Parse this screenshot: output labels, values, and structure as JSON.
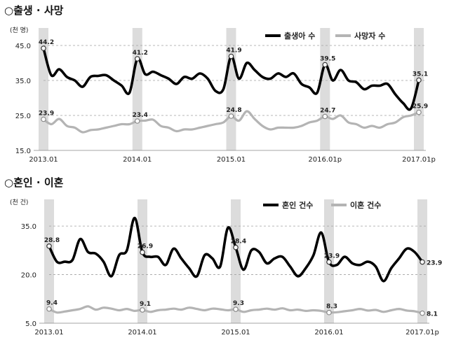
{
  "sections": [
    {
      "title": "○출생 · 사망"
    },
    {
      "title": "○혼인 · 이혼"
    }
  ],
  "chart_data": [
    {
      "type": "line",
      "unit_label": "(천 명)",
      "x_ticks": [
        "2013.01",
        "2014.01",
        "2015.01",
        "2016.01p",
        "2017.01p"
      ],
      "y_ticks": [
        15.0,
        25.0,
        35.0,
        45.0
      ],
      "ylim": [
        15,
        45
      ],
      "highlight_months": [
        0,
        12,
        24,
        36,
        48
      ],
      "series": [
        {
          "name": "출생아 수",
          "color": "#000000",
          "values": [
            44.2,
            36.5,
            38.2,
            36.0,
            35.0,
            33.2,
            36.0,
            36.3,
            36.5,
            35.0,
            33.5,
            31.5,
            41.2,
            36.8,
            37.5,
            36.5,
            35.5,
            34.0,
            36.0,
            35.5,
            37.0,
            35.5,
            32.0,
            32.5,
            41.9,
            35.5,
            40.0,
            38.0,
            36.0,
            35.5,
            37.0,
            36.0,
            37.0,
            34.0,
            33.0,
            31.5,
            39.5,
            35.0,
            38.0,
            35.0,
            34.5,
            32.5,
            33.5,
            33.5,
            34.0,
            31.0,
            28.5,
            27.0,
            35.1
          ],
          "labels": [
            {
              "i": 0,
              "text": "44.2"
            },
            {
              "i": 12,
              "text": "41.2"
            },
            {
              "i": 24,
              "text": "41.9"
            },
            {
              "i": 36,
              "text": "39.5"
            },
            {
              "i": 48,
              "text": "35.1"
            }
          ]
        },
        {
          "name": "사망자 수",
          "color": "#b4b4b4",
          "values": [
            23.9,
            22.5,
            24.0,
            22.0,
            21.5,
            20.2,
            20.8,
            21.0,
            21.5,
            22.0,
            22.5,
            22.5,
            23.4,
            23.5,
            23.8,
            22.0,
            21.5,
            20.5,
            21.0,
            21.0,
            21.5,
            22.0,
            22.5,
            23.0,
            24.8,
            23.5,
            26.2,
            24.0,
            22.0,
            21.0,
            21.5,
            21.5,
            21.5,
            22.0,
            23.0,
            23.5,
            24.7,
            24.0,
            25.0,
            23.0,
            22.5,
            21.5,
            22.0,
            21.5,
            22.5,
            23.0,
            24.5,
            25.0,
            25.9
          ],
          "labels": [
            {
              "i": 0,
              "text": "23.9"
            },
            {
              "i": 12,
              "text": "23.4"
            },
            {
              "i": 24,
              "text": "24.8"
            },
            {
              "i": 36,
              "text": "24.7"
            },
            {
              "i": 48,
              "text": "25.9"
            }
          ]
        }
      ]
    },
    {
      "type": "line",
      "unit_label": "(천 건)",
      "x_ticks": [
        "2013.01",
        "2014.01",
        "2015.01",
        "2016.01",
        "2017.01p"
      ],
      "y_ticks": [
        5.0,
        20.0,
        35.0
      ],
      "ylim": [
        5,
        40
      ],
      "highlight_months": [
        0,
        12,
        24,
        36,
        48
      ],
      "series": [
        {
          "name": "혼인 건수",
          "color": "#000000",
          "values": [
            28.8,
            24.0,
            24.0,
            24.5,
            31.0,
            27.0,
            26.5,
            24.0,
            19.5,
            26.0,
            27.5,
            37.5,
            26.9,
            25.5,
            25.5,
            23.0,
            28.0,
            25.0,
            22.0,
            19.5,
            26.0,
            25.0,
            22.5,
            34.5,
            28.4,
            21.5,
            27.5,
            27.0,
            23.5,
            25.0,
            25.5,
            22.5,
            19.5,
            22.0,
            26.0,
            33.0,
            23.9,
            23.0,
            25.5,
            23.5,
            23.0,
            24.0,
            22.5,
            18.0,
            22.0,
            25.0,
            28.0,
            27.0,
            23.9
          ],
          "labels": [
            {
              "i": 0,
              "text": "28.8"
            },
            {
              "i": 12,
              "text": "26.9"
            },
            {
              "i": 24,
              "text": "28.4"
            },
            {
              "i": 36,
              "text": "23.9"
            },
            {
              "i": 48,
              "text": "23.9"
            }
          ]
        },
        {
          "name": "이혼 건수",
          "color": "#b4b4b4",
          "values": [
            9.4,
            8.3,
            8.6,
            9.0,
            9.4,
            10.2,
            9.2,
            9.8,
            9.5,
            9.0,
            9.4,
            8.8,
            9.1,
            8.5,
            9.0,
            9.2,
            9.5,
            9.2,
            9.8,
            9.4,
            9.0,
            9.5,
            9.3,
            9.0,
            9.3,
            8.5,
            9.0,
            9.2,
            9.5,
            9.2,
            9.6,
            9.0,
            9.2,
            8.8,
            9.0,
            8.8,
            8.3,
            8.4,
            8.7,
            9.0,
            9.4,
            8.9,
            9.1,
            8.5,
            9.0,
            9.4,
            8.9,
            8.7,
            8.1
          ],
          "labels": [
            {
              "i": 0,
              "text": "9.4"
            },
            {
              "i": 12,
              "text": "9.1"
            },
            {
              "i": 24,
              "text": "9.3"
            },
            {
              "i": 36,
              "text": "8.3"
            },
            {
              "i": 48,
              "text": "8.1"
            }
          ]
        }
      ]
    }
  ]
}
